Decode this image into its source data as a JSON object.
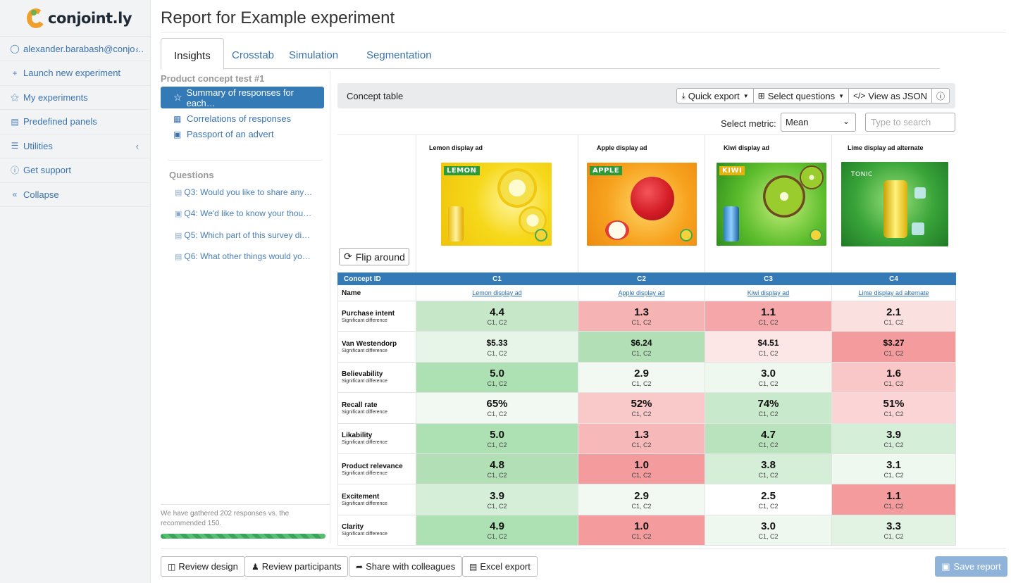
{
  "brand": {
    "name": "conjoint.ly"
  },
  "sidebar": {
    "user": "alexander.barabash@conjo…",
    "items": [
      {
        "label": "Launch new experiment",
        "icon": "plus-icon"
      },
      {
        "label": "My experiments",
        "icon": "flask-icon"
      },
      {
        "label": "Predefined panels",
        "icon": "list-icon"
      },
      {
        "label": "Utilities",
        "icon": "menu-icon"
      },
      {
        "label": "Get support",
        "icon": "question-icon"
      },
      {
        "label": "Collapse",
        "icon": "double-chevron-left-icon"
      }
    ]
  },
  "page": {
    "title": "Report for Example experiment"
  },
  "tabs": [
    "Insights",
    "Crosstab",
    "Simulation",
    "Segmentation"
  ],
  "left_panel": {
    "heading": "Product concept test #1",
    "active_item": "Summary of responses for each…",
    "links": [
      "Correlations of responses",
      "Passport of an advert"
    ],
    "questions_heading": "Questions",
    "questions": [
      "Q3: Would you like to share any …",
      "Q4: We'd like to know your thoug…",
      "Q5: Which part of this survey did …",
      "Q6: What other things would you …"
    ],
    "responses_note": "We have gathered 202 responses vs. the recommended 150.",
    "progress": 1.0
  },
  "concept_panel": {
    "title": "Concept table",
    "buttons": {
      "quick_export": "Quick export",
      "select_questions": "Select questions",
      "view_json": "View as JSON"
    },
    "metric_label": "Select metric:",
    "metric_value": "Mean",
    "search_placeholder": "Type to search",
    "flip_label": "Flip around"
  },
  "concepts": [
    {
      "caption": "Lemon display ad",
      "brand_text": "LEMON",
      "theme": "#f5d21b",
      "accent": "#fff27a",
      "fruit": "#f7e23a"
    },
    {
      "caption": "Apple display ad",
      "brand_text": "APPLE",
      "theme": "#f29a1f",
      "accent": "#ffd25a",
      "fruit": "#d8222a"
    },
    {
      "caption": "Kiwi display ad",
      "brand_text": "KIWI",
      "theme": "#5dbb2c",
      "accent": "#b8e86a",
      "fruit": "#7a9a1a"
    },
    {
      "caption": "Lime display ad alternate",
      "brand_text": "TONIC",
      "theme": "#3aa53a",
      "accent": "#9be07a",
      "fruit": "#f3e04a"
    }
  ],
  "table": {
    "id_header": "Concept ID",
    "ids": [
      "C1",
      "C2",
      "C3",
      "C4"
    ],
    "name_label": "Name",
    "names": [
      "Lemon display ad",
      "Apple display ad",
      "Kiwi display ad",
      "Lime display ad alternate"
    ],
    "rows": [
      {
        "name": "Purchase intent",
        "sub": "Significant difference",
        "small": false,
        "cells": [
          {
            "v": "4.4",
            "s": "C1, C2",
            "c": "#c6e8c9"
          },
          {
            "v": "1.3",
            "s": "C1, C2",
            "c": "#f5b3b4"
          },
          {
            "v": "1.1",
            "s": "C1, C2",
            "c": "#f4a6a8"
          },
          {
            "v": "2.1",
            "s": "C1, C2",
            "c": "#fbe0e0"
          }
        ]
      },
      {
        "name": "Van Westendorp",
        "sub": "Significant difference",
        "small": true,
        "cells": [
          {
            "v": "$5.33",
            "s": "C1, C2",
            "c": "#e7f5e8"
          },
          {
            "v": "$6.24",
            "s": "C1, C2",
            "c": "#b2dfb6"
          },
          {
            "v": "$4.51",
            "s": "C1, C2",
            "c": "#fde6e6"
          },
          {
            "v": "$3.27",
            "s": "C1, C2",
            "c": "#f49b9d"
          }
        ]
      },
      {
        "name": "Believability",
        "sub": "Significant difference",
        "small": false,
        "cells": [
          {
            "v": "5.0",
            "s": "C1, C2",
            "c": "#ade0b2"
          },
          {
            "v": "2.9",
            "s": "C1, C2",
            "c": "#f1f9f2"
          },
          {
            "v": "3.0",
            "s": "C1, C2",
            "c": "#eef8ef"
          },
          {
            "v": "1.6",
            "s": "C1, C2",
            "c": "#f9c7c8"
          }
        ]
      },
      {
        "name": "Recall rate",
        "sub": "Significant difference",
        "small": false,
        "cells": [
          {
            "v": "65%",
            "s": "C1, C2",
            "c": "#f1f9f2"
          },
          {
            "v": "52%",
            "s": "C1, C2",
            "c": "#f9c9ca"
          },
          {
            "v": "74%",
            "s": "C1, C2",
            "c": "#c8e9cb"
          },
          {
            "v": "51%",
            "s": "C1, C2",
            "c": "#fbd4d5"
          }
        ]
      },
      {
        "name": "Likability",
        "sub": "Significant difference",
        "small": false,
        "cells": [
          {
            "v": "5.0",
            "s": "C1, C2",
            "c": "#ade0b2"
          },
          {
            "v": "1.3",
            "s": "C1, C2",
            "c": "#f7b8ba"
          },
          {
            "v": "4.7",
            "s": "C1, C2",
            "c": "#b9e3bd"
          },
          {
            "v": "3.9",
            "s": "C1, C2",
            "c": "#d5eed8"
          }
        ]
      },
      {
        "name": "Product relevance",
        "sub": "Significant difference",
        "small": false,
        "cells": [
          {
            "v": "4.8",
            "s": "C1, C2",
            "c": "#b2dfb6"
          },
          {
            "v": "1.0",
            "s": "C1, C2",
            "c": "#f49b9d"
          },
          {
            "v": "3.8",
            "s": "C1, C2",
            "c": "#d5eed8"
          },
          {
            "v": "3.1",
            "s": "C1, C2",
            "c": "#eef8ef"
          }
        ]
      },
      {
        "name": "Excitement",
        "sub": "Significant difference",
        "small": false,
        "cells": [
          {
            "v": "3.9",
            "s": "C1, C2",
            "c": "#d5eed8"
          },
          {
            "v": "2.9",
            "s": "C1, C2",
            "c": "#f1f9f2"
          },
          {
            "v": "2.5",
            "s": "C1, C2",
            "c": "#ffffff"
          },
          {
            "v": "1.1",
            "s": "C1, C2",
            "c": "#f49b9d"
          }
        ]
      },
      {
        "name": "Clarity",
        "sub": "Significant difference",
        "small": false,
        "cells": [
          {
            "v": "4.9",
            "s": "C1, C2",
            "c": "#ade0b2"
          },
          {
            "v": "1.0",
            "s": "C1, C2",
            "c": "#f49b9d"
          },
          {
            "v": "3.0",
            "s": "C1, C2",
            "c": "#eef8ef"
          },
          {
            "v": "3.3",
            "s": "C1, C2",
            "c": "#e2f3e4"
          }
        ]
      }
    ]
  },
  "footer": {
    "buttons": [
      "Review design",
      "Review participants",
      "Share with colleagues",
      "Excel export"
    ],
    "save": "Save report"
  }
}
